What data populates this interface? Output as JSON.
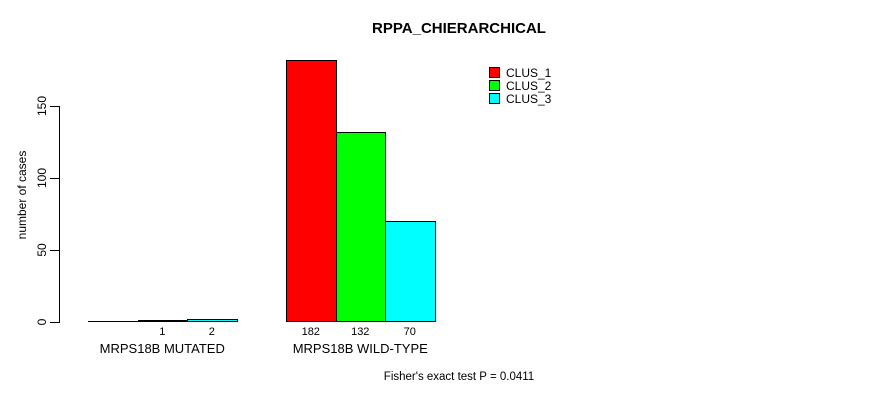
{
  "chart_data": {
    "type": "bar",
    "title": "RPPA_CHIERARCHICAL",
    "ylabel": "number of cases",
    "xlabel": "",
    "ylim": [
      0,
      182
    ],
    "yticks": [
      0,
      50,
      100,
      150
    ],
    "grid": false,
    "legend_position": "top-right",
    "categories": [
      "MRPS18B MUTATED",
      "MRPS18B WILD-TYPE"
    ],
    "series": [
      {
        "name": "CLUS_1",
        "color": "#FF0000",
        "values": [
          0,
          182
        ]
      },
      {
        "name": "CLUS_2",
        "color": "#00FF00",
        "values": [
          1,
          132
        ]
      },
      {
        "name": "CLUS_3",
        "color": "#00FFFF",
        "values": [
          2,
          70
        ]
      }
    ],
    "bar_value_labels": [
      [
        "",
        "1",
        "2"
      ],
      [
        "182",
        "132",
        "70"
      ]
    ],
    "annotation": "Fisher's exact test P = 0.0411"
  }
}
